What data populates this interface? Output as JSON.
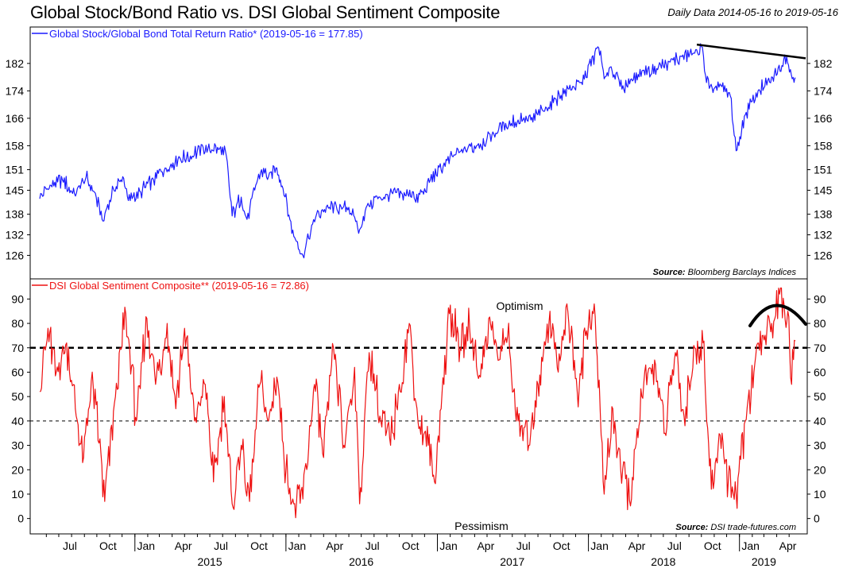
{
  "title": "Global Stock/Bond Ratio vs. DSI Global Sentiment Composite",
  "subtitle": "Daily Data 2014-05-16 to 2019-05-16",
  "chart_data": [
    {
      "type": "line",
      "legend": "Global Stock/Global Bond Total Return Ratio* (2019-05-16 = 177.85)",
      "source_label": "Source:",
      "source_text": "Bloomberg Barclays Indices",
      "color": "#1a1aff",
      "ylim": [
        121,
        191
      ],
      "yticks": [
        126,
        132,
        138,
        145,
        151,
        158,
        166,
        174,
        182
      ],
      "points": [
        [
          "2014-05-16",
          142.5
        ],
        [
          "2014-06-10",
          146.5
        ],
        [
          "2014-07-10",
          148.0
        ],
        [
          "2014-08-08",
          144.0
        ],
        [
          "2014-09-05",
          148.8
        ],
        [
          "2014-09-25",
          144.5
        ],
        [
          "2014-10-16",
          136.0
        ],
        [
          "2014-11-10",
          145.5
        ],
        [
          "2014-12-05",
          148.5
        ],
        [
          "2014-12-16",
          142.0
        ],
        [
          "2015-01-15",
          144.5
        ],
        [
          "2015-02-15",
          148.0
        ],
        [
          "2015-03-15",
          151.5
        ],
        [
          "2015-04-15",
          154.0
        ],
        [
          "2015-05-15",
          155.0
        ],
        [
          "2015-06-15",
          157.5
        ],
        [
          "2015-07-01",
          156.5
        ],
        [
          "2015-07-20",
          157.5
        ],
        [
          "2015-08-10",
          155.0
        ],
        [
          "2015-08-24",
          137.5
        ],
        [
          "2015-09-15",
          143.0
        ],
        [
          "2015-09-29",
          136.5
        ],
        [
          "2015-10-20",
          146.5
        ],
        [
          "2015-11-03",
          151.0
        ],
        [
          "2015-11-20",
          149.0
        ],
        [
          "2015-12-10",
          151.5
        ],
        [
          "2015-12-25",
          145.5
        ],
        [
          "2016-01-20",
          131.5
        ],
        [
          "2016-02-11",
          126.0
        ],
        [
          "2016-03-15",
          138.0
        ],
        [
          "2016-04-15",
          140.0
        ],
        [
          "2016-05-15",
          139.5
        ],
        [
          "2016-06-01",
          140.0
        ],
        [
          "2016-06-27",
          133.5
        ],
        [
          "2016-07-15",
          140.5
        ],
        [
          "2016-08-15",
          143.0
        ],
        [
          "2016-09-15",
          144.0
        ],
        [
          "2016-10-15",
          143.5
        ],
        [
          "2016-11-04",
          144.5
        ],
        [
          "2016-11-10",
          141.5
        ],
        [
          "2016-12-15",
          148.0
        ],
        [
          "2017-01-15",
          152.0
        ],
        [
          "2017-02-15",
          155.5
        ],
        [
          "2017-03-15",
          157.0
        ],
        [
          "2017-04-15",
          158.5
        ],
        [
          "2017-05-15",
          162.0
        ],
        [
          "2017-06-15",
          164.5
        ],
        [
          "2017-07-15",
          165.5
        ],
        [
          "2017-08-15",
          165.5
        ],
        [
          "2017-09-15",
          168.0
        ],
        [
          "2017-10-15",
          171.5
        ],
        [
          "2017-11-15",
          174.5
        ],
        [
          "2017-12-15",
          176.5
        ],
        [
          "2018-01-26",
          186.5
        ],
        [
          "2018-02-08",
          177.5
        ],
        [
          "2018-02-25",
          181.0
        ],
        [
          "2018-03-23",
          174.5
        ],
        [
          "2018-04-15",
          177.5
        ],
        [
          "2018-05-15",
          180.0
        ],
        [
          "2018-06-15",
          180.5
        ],
        [
          "2018-07-15",
          182.5
        ],
        [
          "2018-08-15",
          184.0
        ],
        [
          "2018-09-15",
          185.0
        ],
        [
          "2018-10-01",
          187.0
        ],
        [
          "2018-10-11",
          178.5
        ],
        [
          "2018-10-29",
          173.5
        ],
        [
          "2018-11-15",
          176.0
        ],
        [
          "2018-12-10",
          172.5
        ],
        [
          "2018-12-24",
          156.5
        ],
        [
          "2019-01-15",
          167.0
        ],
        [
          "2019-02-15",
          174.0
        ],
        [
          "2019-03-15",
          176.5
        ],
        [
          "2019-04-25",
          184.0
        ],
        [
          "2019-05-13",
          176.5
        ],
        [
          "2019-05-16",
          177.85
        ]
      ],
      "trendline": [
        [
          "2018-09-20",
          187.5
        ],
        [
          "2019-05-16",
          183.5
        ]
      ]
    },
    {
      "type": "line",
      "legend": "DSI Global Sentiment Composite** (2019-05-16 = 72.86)",
      "source_label": "Source:",
      "source_text": "DSI trade-futures.com",
      "annotation_top": "Optimism",
      "annotation_bottom": "Pessimism",
      "color": "#ee1111",
      "ylim": [
        -5,
        95
      ],
      "yticks": [
        0,
        10,
        20,
        30,
        40,
        50,
        60,
        70,
        80,
        90
      ],
      "reference_lines": [
        70,
        40
      ],
      "points": [
        [
          "2014-05-16",
          52
        ],
        [
          "2014-06-05",
          78
        ],
        [
          "2014-06-25",
          60
        ],
        [
          "2014-07-20",
          72
        ],
        [
          "2014-08-10",
          45
        ],
        [
          "2014-08-30",
          25
        ],
        [
          "2014-09-20",
          60
        ],
        [
          "2014-10-20",
          7
        ],
        [
          "2014-11-15",
          50
        ],
        [
          "2014-12-10",
          84
        ],
        [
          "2015-01-05",
          40
        ],
        [
          "2015-01-30",
          82
        ],
        [
          "2015-02-20",
          55
        ],
        [
          "2015-03-20",
          80
        ],
        [
          "2015-04-10",
          45
        ],
        [
          "2015-05-01",
          78
        ],
        [
          "2015-05-25",
          40
        ],
        [
          "2015-06-20",
          55
        ],
        [
          "2015-07-10",
          15
        ],
        [
          "2015-08-05",
          50
        ],
        [
          "2015-08-24",
          6
        ],
        [
          "2015-09-15",
          30
        ],
        [
          "2015-10-05",
          7
        ],
        [
          "2015-10-30",
          55
        ],
        [
          "2015-11-20",
          40
        ],
        [
          "2015-12-10",
          58
        ],
        [
          "2016-01-01",
          20
        ],
        [
          "2016-01-20",
          6
        ],
        [
          "2016-02-11",
          8
        ],
        [
          "2016-03-10",
          55
        ],
        [
          "2016-04-01",
          25
        ],
        [
          "2016-04-25",
          70
        ],
        [
          "2016-05-20",
          30
        ],
        [
          "2016-06-15",
          62
        ],
        [
          "2016-06-27",
          6
        ],
        [
          "2016-07-20",
          68
        ],
        [
          "2016-08-15",
          42
        ],
        [
          "2016-09-10",
          30
        ],
        [
          "2016-10-01",
          55
        ],
        [
          "2016-10-25",
          80
        ],
        [
          "2016-11-15",
          40
        ],
        [
          "2016-12-10",
          30
        ],
        [
          "2016-12-25",
          15
        ],
        [
          "2017-01-10",
          45
        ],
        [
          "2017-01-30",
          84
        ],
        [
          "2017-02-25",
          70
        ],
        [
          "2017-03-20",
          78
        ],
        [
          "2017-04-15",
          58
        ],
        [
          "2017-05-05",
          82
        ],
        [
          "2017-05-30",
          65
        ],
        [
          "2017-06-20",
          75
        ],
        [
          "2017-07-15",
          40
        ],
        [
          "2017-08-10",
          30
        ],
        [
          "2017-09-01",
          55
        ],
        [
          "2017-09-30",
          85
        ],
        [
          "2017-10-20",
          60
        ],
        [
          "2017-11-10",
          88
        ],
        [
          "2017-12-05",
          52
        ],
        [
          "2017-12-25",
          75
        ],
        [
          "2018-01-15",
          88
        ],
        [
          "2018-02-08",
          10
        ],
        [
          "2018-03-01",
          45
        ],
        [
          "2018-03-20",
          20
        ],
        [
          "2018-04-15",
          8
        ],
        [
          "2018-05-10",
          50
        ],
        [
          "2018-06-10",
          65
        ],
        [
          "2018-07-05",
          35
        ],
        [
          "2018-07-30",
          68
        ],
        [
          "2018-08-20",
          42
        ],
        [
          "2018-09-15",
          70
        ],
        [
          "2018-10-05",
          72
        ],
        [
          "2018-10-25",
          12
        ],
        [
          "2018-11-20",
          35
        ],
        [
          "2018-12-05",
          15
        ],
        [
          "2018-12-24",
          10
        ],
        [
          "2019-01-15",
          40
        ],
        [
          "2019-02-05",
          60
        ],
        [
          "2019-02-25",
          75
        ],
        [
          "2019-03-20",
          80
        ],
        [
          "2019-04-08",
          92
        ],
        [
          "2019-04-28",
          85
        ],
        [
          "2019-05-07",
          55
        ],
        [
          "2019-05-16",
          72.86
        ]
      ]
    }
  ],
  "x_axis": {
    "start": "2014-05-16",
    "end": "2019-05-16",
    "month_labels": [
      [
        "2014-07-01",
        "Jul"
      ],
      [
        "2014-10-01",
        "Oct"
      ],
      [
        "2015-01-01",
        "Jan"
      ],
      [
        "2015-04-01",
        "Apr"
      ],
      [
        "2015-07-01",
        "Jul"
      ],
      [
        "2015-10-01",
        "Oct"
      ],
      [
        "2016-01-01",
        "Jan"
      ],
      [
        "2016-04-01",
        "Apr"
      ],
      [
        "2016-07-01",
        "Jul"
      ],
      [
        "2016-10-01",
        "Oct"
      ],
      [
        "2017-01-01",
        "Jan"
      ],
      [
        "2017-04-01",
        "Apr"
      ],
      [
        "2017-07-01",
        "Jul"
      ],
      [
        "2017-10-01",
        "Oct"
      ],
      [
        "2018-01-01",
        "Jan"
      ],
      [
        "2018-04-01",
        "Apr"
      ],
      [
        "2018-07-01",
        "Jul"
      ],
      [
        "2018-10-01",
        "Oct"
      ],
      [
        "2019-01-01",
        "Jan"
      ],
      [
        "2019-04-01",
        "Apr"
      ]
    ],
    "year_labels": [
      [
        "2015-07-01",
        "2015"
      ],
      [
        "2016-07-01",
        "2016"
      ],
      [
        "2017-07-01",
        "2017"
      ],
      [
        "2018-07-01",
        "2018"
      ],
      [
        "2019-03-01",
        "2019"
      ]
    ]
  }
}
